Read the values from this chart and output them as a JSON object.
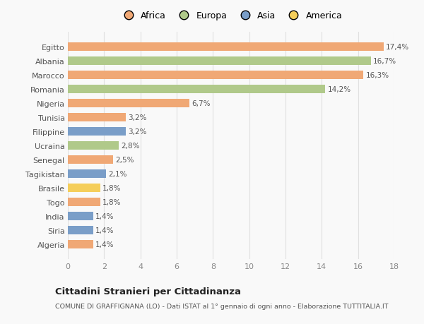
{
  "categories": [
    "Algeria",
    "Siria",
    "India",
    "Togo",
    "Brasile",
    "Tagikistan",
    "Senegal",
    "Ucraina",
    "Filippine",
    "Tunisia",
    "Nigeria",
    "Romania",
    "Marocco",
    "Albania",
    "Egitto"
  ],
  "values": [
    1.4,
    1.4,
    1.4,
    1.8,
    1.8,
    2.1,
    2.5,
    2.8,
    3.2,
    3.2,
    6.7,
    14.2,
    16.3,
    16.7,
    17.4
  ],
  "labels": [
    "1,4%",
    "1,4%",
    "1,4%",
    "1,8%",
    "1,8%",
    "2,1%",
    "2,5%",
    "2,8%",
    "3,2%",
    "3,2%",
    "6,7%",
    "14,2%",
    "16,3%",
    "16,7%",
    "17,4%"
  ],
  "colors": [
    "#f0a875",
    "#7a9ec8",
    "#7a9ec8",
    "#f0a875",
    "#f5ce5a",
    "#7a9ec8",
    "#f0a875",
    "#b0c98a",
    "#7a9ec8",
    "#f0a875",
    "#f0a875",
    "#b0c98a",
    "#f0a875",
    "#b0c98a",
    "#f0a875"
  ],
  "legend": [
    {
      "label": "Africa",
      "color": "#f0a875"
    },
    {
      "label": "Europa",
      "color": "#b0c98a"
    },
    {
      "label": "Asia",
      "color": "#7a9ec8"
    },
    {
      "label": "America",
      "color": "#f5ce5a"
    }
  ],
  "title": "Cittadini Stranieri per Cittadinanza",
  "subtitle": "COMUNE DI GRAFFIGNANA (LO) - Dati ISTAT al 1° gennaio di ogni anno - Elaborazione TUTTITALIA.IT",
  "xlim": [
    0,
    18
  ],
  "xticks": [
    0,
    2,
    4,
    6,
    8,
    10,
    12,
    14,
    16,
    18
  ],
  "background_color": "#f9f9f9",
  "grid_color": "#e0e0e0"
}
